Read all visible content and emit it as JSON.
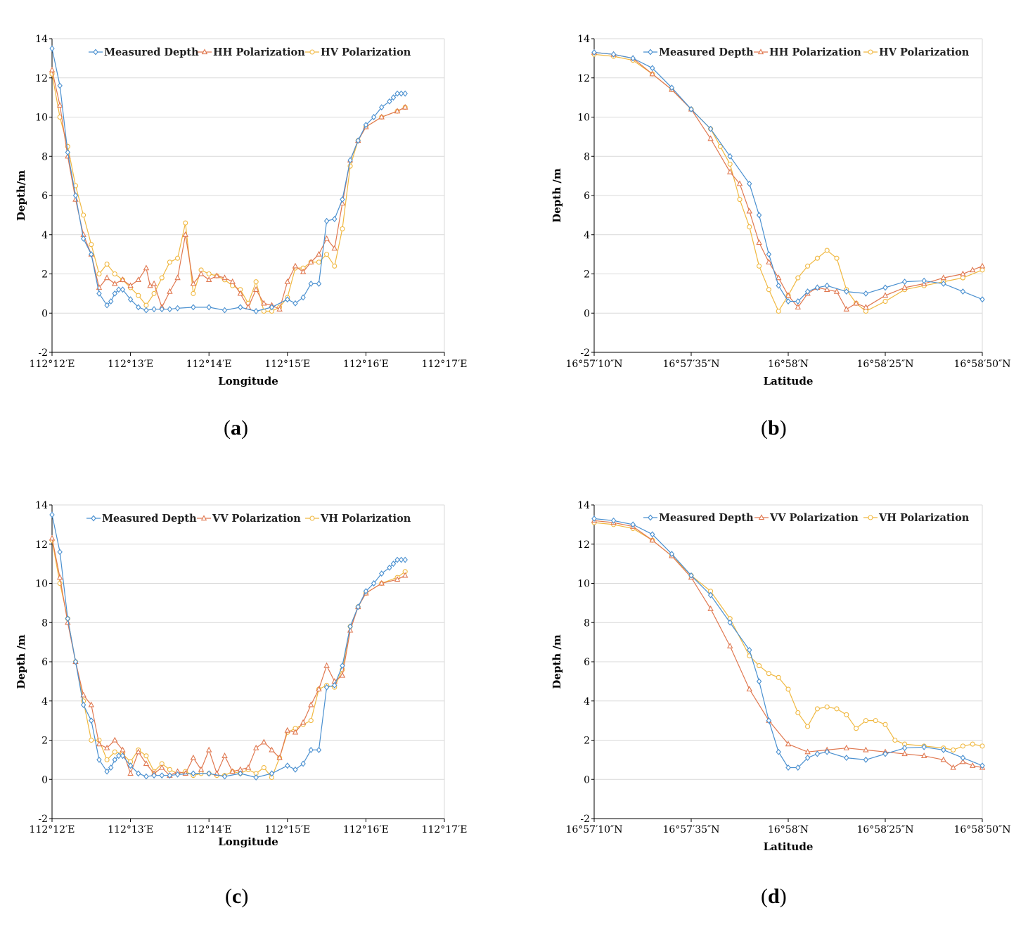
{
  "figure": {
    "panel_labels": [
      {
        "open": "(",
        "letter": "a",
        "close": ")"
      },
      {
        "open": "(",
        "letter": "b",
        "close": ")"
      },
      {
        "open": "(",
        "letter": "c",
        "close": ")"
      },
      {
        "open": "(",
        "letter": "d",
        "close": ")"
      }
    ]
  },
  "colors": {
    "measured": "#4a90d0",
    "pol1": "#e07850",
    "pol2": "#f0b840",
    "grid": "#d9d9d9",
    "axis": "#000000"
  },
  "chart_data": [
    {
      "type": "line",
      "panel": "a",
      "xlabel": "Longitude",
      "ylabel": "Depth/m",
      "xlim": [
        0,
        5
      ],
      "ylim": [
        -2,
        14
      ],
      "xtick_labels": [
        "112°12′E",
        "112°13′E",
        "112°14′E",
        "112°15′E",
        "112°16′E",
        "112°17′E"
      ],
      "ytick_values": [
        -2,
        0,
        2,
        4,
        6,
        8,
        10,
        12,
        14
      ],
      "legend": "top",
      "series": [
        {
          "name": "Measured Depth",
          "color": "#4a90d0",
          "marker": "diamond",
          "x": [
            0.0,
            0.1,
            0.2,
            0.3,
            0.4,
            0.5,
            0.6,
            0.7,
            0.75,
            0.8,
            0.85,
            0.9,
            1.0,
            1.1,
            1.2,
            1.3,
            1.4,
            1.5,
            1.6,
            1.8,
            2.0,
            2.2,
            2.4,
            2.6,
            2.8,
            3.0,
            3.1,
            3.2,
            3.3,
            3.4,
            3.5,
            3.6,
            3.7,
            3.8,
            3.9,
            4.0,
            4.1,
            4.2,
            4.3,
            4.35,
            4.4,
            4.45,
            4.5
          ],
          "y": [
            13.5,
            11.6,
            8.2,
            6.0,
            3.8,
            3.0,
            1.0,
            0.4,
            0.6,
            1.0,
            1.2,
            1.2,
            0.7,
            0.3,
            0.15,
            0.2,
            0.2,
            0.2,
            0.25,
            0.3,
            0.3,
            0.15,
            0.3,
            0.1,
            0.3,
            0.7,
            0.5,
            0.8,
            1.5,
            1.5,
            4.7,
            4.8,
            5.8,
            7.8,
            8.8,
            9.6,
            10.0,
            10.5,
            10.8,
            11.0,
            11.2,
            11.2,
            11.2
          ]
        },
        {
          "name": "HH Polarization",
          "color": "#e07850",
          "marker": "triangle",
          "x": [
            0.0,
            0.1,
            0.2,
            0.3,
            0.4,
            0.5,
            0.6,
            0.7,
            0.8,
            0.9,
            1.0,
            1.1,
            1.2,
            1.25,
            1.3,
            1.4,
            1.5,
            1.6,
            1.7,
            1.8,
            1.9,
            2.0,
            2.1,
            2.2,
            2.3,
            2.4,
            2.5,
            2.6,
            2.7,
            2.8,
            2.9,
            3.0,
            3.1,
            3.2,
            3.3,
            3.4,
            3.5,
            3.6,
            3.7,
            3.8,
            3.9,
            4.0,
            4.2,
            4.4,
            4.5
          ],
          "y": [
            12.4,
            10.6,
            8.0,
            5.8,
            4.0,
            3.0,
            1.3,
            1.8,
            1.5,
            1.7,
            1.4,
            1.7,
            2.3,
            1.4,
            1.5,
            0.3,
            1.1,
            1.8,
            4.0,
            1.5,
            2.0,
            1.7,
            1.9,
            1.8,
            1.6,
            1.0,
            0.3,
            1.2,
            0.5,
            0.4,
            0.2,
            1.6,
            2.4,
            2.1,
            2.6,
            3.0,
            3.8,
            3.3,
            5.6,
            7.8,
            8.8,
            9.5,
            10.0,
            10.3,
            10.5
          ]
        },
        {
          "name": "HV Polarization",
          "color": "#f0b840",
          "marker": "circle",
          "x": [
            0.0,
            0.1,
            0.2,
            0.3,
            0.4,
            0.5,
            0.6,
            0.7,
            0.8,
            0.9,
            1.0,
            1.1,
            1.2,
            1.3,
            1.4,
            1.5,
            1.6,
            1.7,
            1.8,
            1.9,
            2.0,
            2.1,
            2.2,
            2.3,
            2.4,
            2.5,
            2.6,
            2.7,
            2.8,
            2.9,
            3.0,
            3.1,
            3.2,
            3.3,
            3.4,
            3.5,
            3.6,
            3.7,
            3.8,
            3.9,
            4.0,
            4.2,
            4.4,
            4.5
          ],
          "y": [
            12.2,
            10.0,
            8.5,
            6.5,
            5.0,
            3.5,
            2.0,
            2.5,
            2.0,
            1.7,
            1.3,
            0.9,
            0.4,
            1.0,
            1.8,
            2.6,
            2.8,
            4.6,
            1.0,
            2.2,
            2.0,
            1.9,
            1.7,
            1.4,
            1.2,
            0.5,
            1.6,
            0.1,
            0.1,
            0.3,
            0.8,
            2.3,
            2.3,
            2.6,
            2.6,
            3.0,
            2.4,
            4.3,
            7.5,
            8.8,
            9.5,
            10.0,
            10.3,
            10.5
          ]
        }
      ]
    },
    {
      "type": "line",
      "panel": "b",
      "xlabel": "Latitude",
      "ylabel": "Depth /m",
      "xlim": [
        0,
        100
      ],
      "ylim": [
        -2,
        14
      ],
      "xtick_labels": [
        "16°57′10″N",
        "16°57′35″N",
        "16°58′N",
        "16°58′25″N",
        "16°58′50″N"
      ],
      "ytick_values": [
        -2,
        0,
        2,
        4,
        6,
        8,
        10,
        12,
        14
      ],
      "legend": "top",
      "series": [
        {
          "name": "Measured Depth",
          "color": "#4a90d0",
          "marker": "diamond",
          "x": [
            0,
            5,
            10,
            15,
            20,
            25,
            30,
            35,
            40,
            42.5,
            45,
            47.5,
            50,
            52.5,
            55,
            57.5,
            60,
            65,
            70,
            75,
            80,
            85,
            90,
            95,
            100
          ],
          "y": [
            13.3,
            13.2,
            13.0,
            12.5,
            11.5,
            10.4,
            9.4,
            8.0,
            6.6,
            5.0,
            3.0,
            1.4,
            0.6,
            0.6,
            1.1,
            1.3,
            1.4,
            1.1,
            1.0,
            1.3,
            1.6,
            1.65,
            1.5,
            1.1,
            0.7
          ]
        },
        {
          "name": "HH Polarization",
          "color": "#e07850",
          "marker": "triangle",
          "x": [
            0,
            5,
            10,
            15,
            20,
            25,
            30,
            35,
            37.5,
            40,
            42.5,
            45,
            47.5,
            50,
            52.5,
            55,
            57.5,
            60,
            62.5,
            65,
            67.5,
            70,
            75,
            80,
            85,
            90,
            95,
            97.5,
            100
          ],
          "y": [
            13.3,
            13.2,
            13.0,
            12.2,
            11.4,
            10.4,
            8.9,
            7.2,
            6.6,
            5.2,
            3.6,
            2.6,
            1.8,
            0.9,
            0.3,
            1.0,
            1.3,
            1.2,
            1.1,
            0.2,
            0.5,
            0.3,
            0.9,
            1.3,
            1.5,
            1.8,
            2.0,
            2.2,
            2.4
          ]
        },
        {
          "name": "HV Polarization",
          "color": "#f0b840",
          "marker": "circle",
          "x": [
            0,
            5,
            10,
            15,
            20,
            25,
            30,
            32.5,
            35,
            37.5,
            40,
            42.5,
            45,
            47.5,
            50,
            52.5,
            55,
            57.5,
            60,
            62.5,
            65,
            67.5,
            70,
            75,
            80,
            85,
            90,
            95,
            100
          ],
          "y": [
            13.2,
            13.1,
            12.9,
            12.2,
            11.4,
            10.4,
            9.4,
            8.5,
            7.6,
            5.8,
            4.4,
            2.4,
            1.2,
            0.1,
            0.9,
            1.8,
            2.4,
            2.8,
            3.2,
            2.8,
            1.2,
            0.5,
            0.1,
            0.6,
            1.2,
            1.4,
            1.6,
            1.8,
            2.2
          ]
        }
      ]
    },
    {
      "type": "line",
      "panel": "c",
      "xlabel": "Longitude",
      "ylabel": "Depth /m",
      "xlim": [
        0,
        5
      ],
      "ylim": [
        -2,
        14
      ],
      "xtick_labels": [
        "112°12′E",
        "112°13′E",
        "112°14′E",
        "112°15′E",
        "112°16′E",
        "112°17′E"
      ],
      "ytick_values": [
        -2,
        0,
        2,
        4,
        6,
        8,
        10,
        12,
        14
      ],
      "legend": "top",
      "series": [
        {
          "name": "Measured Depth",
          "color": "#4a90d0",
          "marker": "diamond",
          "x": [
            0.0,
            0.1,
            0.2,
            0.3,
            0.4,
            0.5,
            0.6,
            0.7,
            0.75,
            0.8,
            0.85,
            0.9,
            1.0,
            1.1,
            1.2,
            1.3,
            1.4,
            1.5,
            1.6,
            1.8,
            2.0,
            2.2,
            2.4,
            2.6,
            2.8,
            3.0,
            3.1,
            3.2,
            3.3,
            3.4,
            3.5,
            3.6,
            3.7,
            3.8,
            3.9,
            4.0,
            4.1,
            4.2,
            4.3,
            4.35,
            4.4,
            4.45,
            4.5
          ],
          "y": [
            13.5,
            11.6,
            8.2,
            6.0,
            3.8,
            3.0,
            1.0,
            0.4,
            0.6,
            1.0,
            1.2,
            1.2,
            0.7,
            0.3,
            0.15,
            0.2,
            0.2,
            0.2,
            0.25,
            0.3,
            0.3,
            0.15,
            0.3,
            0.1,
            0.3,
            0.7,
            0.5,
            0.8,
            1.5,
            1.5,
            4.7,
            4.8,
            5.8,
            7.8,
            8.8,
            9.6,
            10.0,
            10.5,
            10.8,
            11.0,
            11.2,
            11.2,
            11.2
          ]
        },
        {
          "name": "VV Polarization",
          "color": "#e07850",
          "marker": "triangle",
          "x": [
            0.0,
            0.1,
            0.2,
            0.3,
            0.4,
            0.5,
            0.6,
            0.7,
            0.8,
            0.9,
            1.0,
            1.1,
            1.2,
            1.3,
            1.4,
            1.5,
            1.6,
            1.7,
            1.8,
            1.9,
            2.0,
            2.1,
            2.2,
            2.3,
            2.4,
            2.5,
            2.6,
            2.7,
            2.8,
            2.9,
            3.0,
            3.1,
            3.2,
            3.3,
            3.4,
            3.5,
            3.6,
            3.7,
            3.8,
            3.9,
            4.0,
            4.2,
            4.4,
            4.5
          ],
          "y": [
            12.3,
            10.3,
            8.0,
            6.0,
            4.3,
            3.8,
            1.8,
            1.6,
            2.0,
            1.5,
            0.3,
            1.4,
            0.8,
            0.3,
            0.6,
            0.2,
            0.4,
            0.3,
            1.1,
            0.5,
            1.5,
            0.3,
            1.2,
            0.4,
            0.5,
            0.6,
            1.6,
            1.9,
            1.5,
            1.1,
            2.5,
            2.4,
            2.9,
            3.8,
            4.6,
            5.8,
            5.0,
            5.3,
            7.6,
            8.8,
            9.5,
            10.0,
            10.2,
            10.4
          ]
        },
        {
          "name": "VH Polarization",
          "color": "#f0b840",
          "marker": "circle",
          "x": [
            0.0,
            0.1,
            0.2,
            0.3,
            0.4,
            0.5,
            0.6,
            0.7,
            0.8,
            0.9,
            1.0,
            1.1,
            1.2,
            1.3,
            1.4,
            1.5,
            1.6,
            1.7,
            1.8,
            1.9,
            2.0,
            2.1,
            2.2,
            2.3,
            2.4,
            2.5,
            2.6,
            2.7,
            2.8,
            2.9,
            3.0,
            3.1,
            3.2,
            3.3,
            3.4,
            3.5,
            3.6,
            3.7,
            3.8,
            3.9,
            4.0,
            4.2,
            4.4,
            4.5
          ],
          "y": [
            12.2,
            10.0,
            8.2,
            6.0,
            4.0,
            2.0,
            2.0,
            1.0,
            1.4,
            1.3,
            0.9,
            1.5,
            1.2,
            0.4,
            0.8,
            0.5,
            0.3,
            0.4,
            0.2,
            0.3,
            0.3,
            0.2,
            0.2,
            0.4,
            0.3,
            0.5,
            0.3,
            0.6,
            0.1,
            1.1,
            2.4,
            2.6,
            2.8,
            3.0,
            4.6,
            4.8,
            4.7,
            5.6,
            7.8,
            8.8,
            9.5,
            10.0,
            10.3,
            10.6
          ]
        }
      ]
    },
    {
      "type": "line",
      "panel": "d",
      "xlabel": "Latitude",
      "ylabel": "Depth /m",
      "xlim": [
        0,
        100
      ],
      "ylim": [
        -2,
        14
      ],
      "xtick_labels": [
        "16°57′10″N",
        "16°57′35″N",
        "16°58′N",
        "16°58′25″N",
        "16°58′50″N"
      ],
      "ytick_values": [
        -2,
        0,
        2,
        4,
        6,
        8,
        10,
        12,
        14
      ],
      "legend": "top",
      "series": [
        {
          "name": "Measured Depth",
          "color": "#4a90d0",
          "marker": "diamond",
          "x": [
            0,
            5,
            10,
            15,
            20,
            25,
            30,
            35,
            40,
            42.5,
            45,
            47.5,
            50,
            52.5,
            55,
            57.5,
            60,
            65,
            70,
            75,
            80,
            85,
            90,
            95,
            100
          ],
          "y": [
            13.3,
            13.2,
            13.0,
            12.5,
            11.5,
            10.4,
            9.4,
            8.0,
            6.6,
            5.0,
            3.0,
            1.4,
            0.6,
            0.6,
            1.1,
            1.3,
            1.4,
            1.1,
            1.0,
            1.3,
            1.6,
            1.65,
            1.5,
            1.1,
            0.7
          ]
        },
        {
          "name": "VV Polarization",
          "color": "#e07850",
          "marker": "triangle",
          "x": [
            0,
            5,
            10,
            15,
            20,
            25,
            30,
            35,
            40,
            45,
            50,
            55,
            60,
            65,
            70,
            75,
            80,
            85,
            90,
            92.5,
            95,
            97.5,
            100
          ],
          "y": [
            13.2,
            13.1,
            12.9,
            12.2,
            11.4,
            10.3,
            8.7,
            6.8,
            4.6,
            3.0,
            1.8,
            1.4,
            1.5,
            1.6,
            1.5,
            1.4,
            1.3,
            1.2,
            1.0,
            0.6,
            0.9,
            0.7,
            0.6
          ]
        },
        {
          "name": "VH Polarization",
          "color": "#f0b840",
          "marker": "circle",
          "x": [
            0,
            5,
            10,
            15,
            20,
            25,
            30,
            35,
            40,
            42.5,
            45,
            47.5,
            50,
            52.5,
            55,
            57.5,
            60,
            62.5,
            65,
            67.5,
            70,
            72.5,
            75,
            77.5,
            80,
            85,
            90,
            92.5,
            95,
            97.5,
            100
          ],
          "y": [
            13.1,
            13.0,
            12.8,
            12.2,
            11.4,
            10.4,
            9.6,
            8.2,
            6.3,
            5.8,
            5.4,
            5.2,
            4.6,
            3.4,
            2.7,
            3.6,
            3.7,
            3.6,
            3.3,
            2.6,
            3.0,
            3.0,
            2.8,
            2.0,
            1.8,
            1.7,
            1.6,
            1.5,
            1.7,
            1.8,
            1.7
          ]
        }
      ]
    }
  ]
}
